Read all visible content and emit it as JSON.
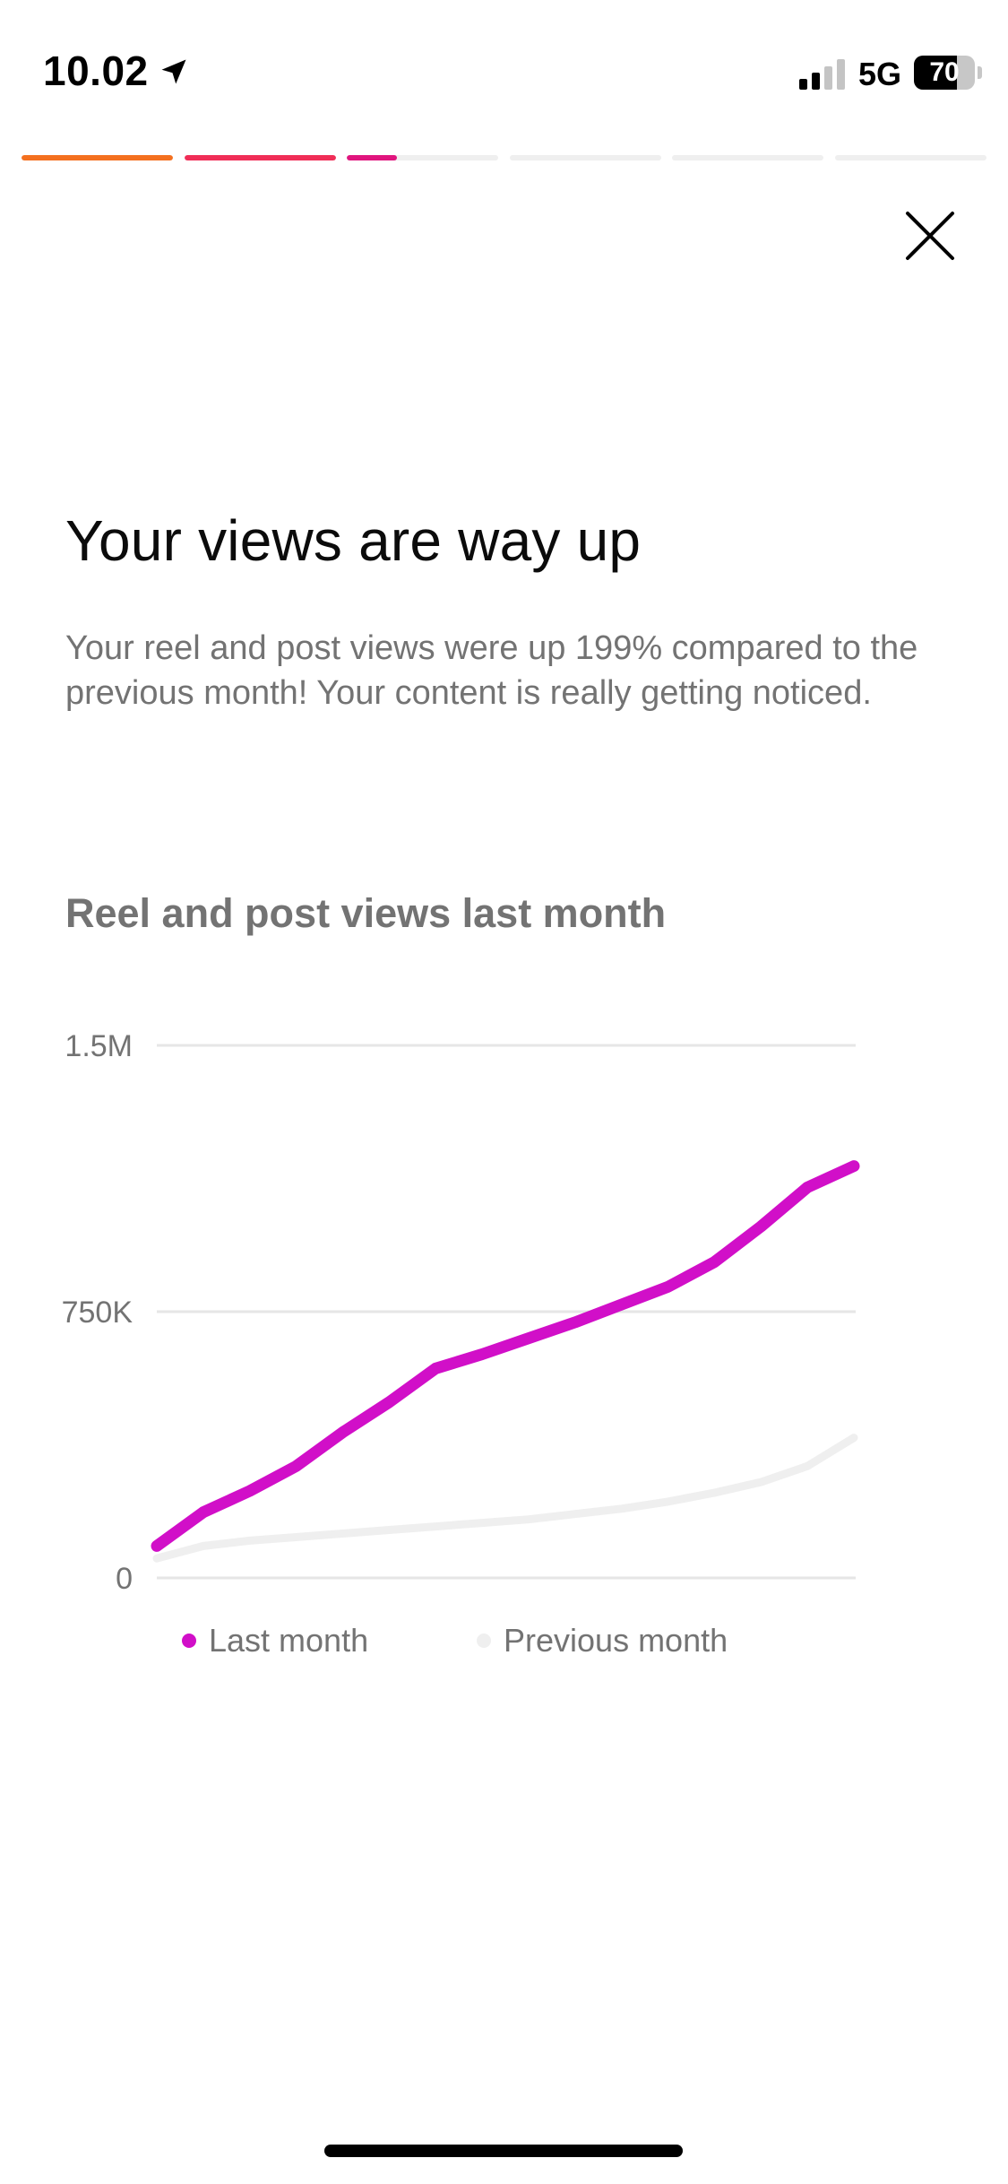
{
  "status_bar": {
    "time": "10.02",
    "location_icon": "location-arrow-icon",
    "signal_icon": "cellular-signal-icon",
    "network": "5G",
    "battery_level": "70",
    "battery_fraction": 0.7
  },
  "story_progress": {
    "segments": [
      {
        "fill": 1.0,
        "color": "#f4701f"
      },
      {
        "fill": 1.0,
        "color": "#f02d57"
      },
      {
        "fill": 0.33,
        "color": "#e0157e"
      },
      {
        "fill": 0.0,
        "color": "#efefef"
      },
      {
        "fill": 0.0,
        "color": "#efefef"
      },
      {
        "fill": 0.0,
        "color": "#efefef"
      }
    ]
  },
  "close_icon": "close-icon",
  "headline": "Your views are way up",
  "description": "Your reel and post views were up 199% compared to the previous month! Your content is really getting noticed.",
  "chart_title": "Reel and post views last month",
  "colors": {
    "last_month": "#d10fc8",
    "previous_month": "#efefef",
    "grid": "#e6e6e6",
    "axis_label": "#737373"
  },
  "chart_data": {
    "type": "line",
    "title": "Reel and post views last month",
    "xlabel": "",
    "ylabel": "",
    "ylim": [
      0,
      1500000
    ],
    "yticks": [
      0,
      750000,
      1500000
    ],
    "ytick_labels": [
      "0",
      "750K",
      "1.5M"
    ],
    "grid": true,
    "legend_placement": "bottom",
    "x": [
      1,
      2,
      3,
      4,
      5,
      6,
      7,
      8,
      9,
      10,
      11,
      12,
      13,
      14,
      15,
      16
    ],
    "series": [
      {
        "name": "Last month",
        "color": "#d10fc8",
        "values": [
          90000,
          185000,
          245000,
          315000,
          410000,
          495000,
          590000,
          630000,
          675000,
          720000,
          770000,
          820000,
          890000,
          990000,
          1100000,
          1160000
        ]
      },
      {
        "name": "Previous month",
        "color": "#efefef",
        "values": [
          55000,
          90000,
          105000,
          115000,
          125000,
          135000,
          145000,
          155000,
          165000,
          180000,
          195000,
          215000,
          240000,
          270000,
          315000,
          395000
        ]
      }
    ]
  }
}
